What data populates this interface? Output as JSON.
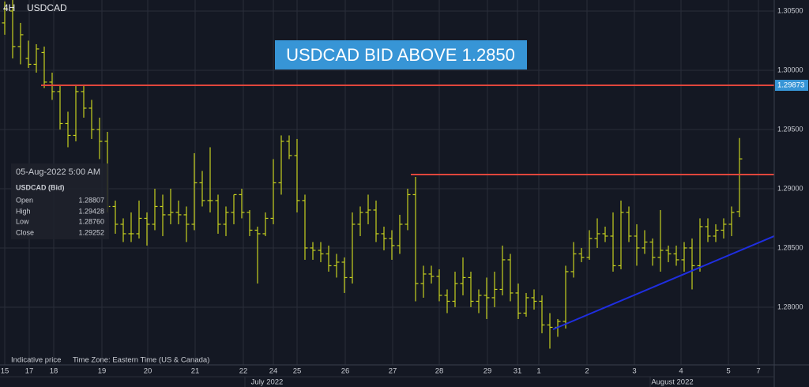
{
  "header": {
    "interval": "4H",
    "symbol": "USDCAD"
  },
  "banner": "USDCAD BID ABOVE 1.2850",
  "info_panel": {
    "datetime": "05-Aug-2022 5:00 AM",
    "instrument": "USDCAD (Bid)",
    "rows": [
      [
        "Open",
        "1.28807"
      ],
      [
        "High",
        "1.29428"
      ],
      [
        "Low",
        "1.28760"
      ],
      [
        "Close",
        "1.29252"
      ]
    ]
  },
  "footer": {
    "note": "Indicative price",
    "timezone": "Time Zone: Eastern Time (US & Canada)"
  },
  "chart_data": {
    "type": "ohlc",
    "color": "#c6d11f",
    "grid": true,
    "xlim": [
      -0.6,
      97.4
    ],
    "ylim": [
      1.27513,
      1.30593
    ],
    "yticks": [
      {
        "value": 1.305,
        "label": "1.30500"
      },
      {
        "value": 1.3,
        "label": "1.30000"
      },
      {
        "value": 1.295,
        "label": "1.29500"
      },
      {
        "value": 1.29,
        "label": "1.29000"
      },
      {
        "value": 1.285,
        "label": "1.28500"
      },
      {
        "value": 1.28,
        "label": "1.28000"
      }
    ],
    "xticks": [
      {
        "value": 0,
        "label": "15"
      },
      {
        "value": 3.1,
        "label": "17"
      },
      {
        "value": 6.2,
        "label": "18"
      },
      {
        "value": 12.3,
        "label": "19"
      },
      {
        "value": 18.1,
        "label": "20"
      },
      {
        "value": 24.1,
        "label": "21"
      },
      {
        "value": 30.2,
        "label": "22"
      },
      {
        "value": 34,
        "label": "24"
      },
      {
        "value": 37,
        "label": "25"
      },
      {
        "value": 43.1,
        "label": "26"
      },
      {
        "value": 49.1,
        "label": "27"
      },
      {
        "value": 55,
        "label": "28"
      },
      {
        "value": 61.1,
        "label": "29"
      },
      {
        "value": 64.9,
        "label": "31"
      },
      {
        "value": 67.6,
        "label": "1"
      },
      {
        "value": 73.7,
        "label": "2"
      },
      {
        "value": 79.7,
        "label": "3"
      },
      {
        "value": 85.6,
        "label": "4"
      },
      {
        "value": 91.6,
        "label": "5"
      },
      {
        "value": 95.4,
        "label": "7"
      }
    ],
    "month_labels": [
      {
        "value": 33.2,
        "label": "July 2022"
      },
      {
        "value": 84.5,
        "label": "August 2022"
      }
    ],
    "open": [
      1.304,
      1.305,
      1.302,
      1.301,
      1.3005,
      1.3015,
      1.299,
      1.2982,
      1.2955,
      1.2945,
      1.2982,
      1.2968,
      1.295,
      1.294,
      1.2885,
      1.287,
      1.2862,
      1.2862,
      1.2875,
      1.287,
      1.2885,
      1.2878,
      1.288,
      1.2878,
      1.287,
      1.2905,
      1.289,
      1.289,
      1.287,
      1.288,
      1.2895,
      1.288,
      1.2865,
      1.2862,
      1.2875,
      1.2905,
      1.294,
      1.2928,
      1.289,
      1.285,
      1.2848,
      1.2845,
      1.2835,
      1.2838,
      1.2825,
      1.287,
      1.288,
      1.2882,
      1.2862,
      1.2858,
      1.2852,
      1.287,
      1.2895,
      1.282,
      1.2828,
      1.2826,
      1.281,
      1.2805,
      1.282,
      1.2825,
      1.2805,
      1.281,
      1.2808,
      1.2815,
      1.284,
      1.2812,
      1.2795,
      1.2808,
      1.2805,
      1.2785,
      1.2783,
      1.2788,
      1.283,
      1.2845,
      1.2842,
      1.2858,
      1.2862,
      1.286,
      1.2835,
      1.288,
      1.286,
      1.285,
      1.2855,
      1.2842,
      1.2848,
      1.2845,
      1.284,
      1.285,
      1.2835,
      1.2868,
      1.286,
      1.2865,
      1.287,
      1.28807
    ],
    "high": [
      1.3058,
      1.3062,
      1.304,
      1.3025,
      1.3022,
      1.302,
      1.2998,
      1.2988,
      1.2965,
      1.2988,
      1.2988,
      1.2975,
      1.296,
      1.2948,
      1.289,
      1.2875,
      1.288,
      1.289,
      1.288,
      1.29,
      1.2895,
      1.29,
      1.289,
      1.2885,
      1.293,
      1.2915,
      1.2935,
      1.2895,
      1.2885,
      1.2895,
      1.29,
      1.2882,
      1.2868,
      1.288,
      1.2925,
      1.2945,
      1.2945,
      1.2942,
      1.2895,
      1.2855,
      1.2855,
      1.2852,
      1.2845,
      1.2842,
      1.288,
      1.2885,
      1.2895,
      1.289,
      1.2868,
      1.2865,
      1.2878,
      1.29,
      1.291,
      1.2835,
      1.2835,
      1.2832,
      1.2815,
      1.283,
      1.2842,
      1.283,
      1.2815,
      1.2825,
      1.283,
      1.2852,
      1.2845,
      1.282,
      1.2812,
      1.2815,
      1.281,
      1.2795,
      1.279,
      1.2835,
      1.2855,
      1.285,
      1.2865,
      1.2875,
      1.2868,
      1.288,
      1.289,
      1.2885,
      1.287,
      1.2865,
      1.2858,
      1.2882,
      1.2852,
      1.2852,
      1.2855,
      1.2858,
      1.2875,
      1.2875,
      1.287,
      1.2875,
      1.2885,
      1.29428
    ],
    "low": [
      1.303,
      1.301,
      1.3005,
      1.3002,
      1.2998,
      1.2985,
      1.2975,
      1.295,
      1.2935,
      1.294,
      1.296,
      1.2942,
      1.2925,
      1.288,
      1.2862,
      1.2855,
      1.2855,
      1.2858,
      1.2852,
      1.2865,
      1.286,
      1.287,
      1.287,
      1.2855,
      1.2865,
      1.2885,
      1.288,
      1.2862,
      1.286,
      1.287,
      1.2875,
      1.286,
      1.282,
      1.286,
      1.287,
      1.2895,
      1.2925,
      1.288,
      1.284,
      1.284,
      1.2838,
      1.283,
      1.2825,
      1.2812,
      1.282,
      1.286,
      1.287,
      1.2855,
      1.2848,
      1.284,
      1.2845,
      1.2865,
      1.2805,
      1.2808,
      1.282,
      1.2805,
      1.2795,
      1.28,
      1.281,
      1.28,
      1.2795,
      1.279,
      1.28,
      1.281,
      1.2805,
      1.279,
      1.2792,
      1.2798,
      1.2778,
      1.2765,
      1.2775,
      1.2782,
      1.2825,
      1.2838,
      1.284,
      1.285,
      1.2855,
      1.283,
      1.2832,
      1.2855,
      1.2835,
      1.2845,
      1.2835,
      1.283,
      1.2838,
      1.2835,
      1.283,
      1.2815,
      1.283,
      1.2855,
      1.2855,
      1.2858,
      1.286,
      1.2876
    ],
    "close": [
      1.3052,
      1.302,
      1.303,
      1.3005,
      1.3018,
      1.299,
      1.2982,
      1.2955,
      1.2945,
      1.2982,
      1.2968,
      1.295,
      1.294,
      1.2885,
      1.287,
      1.2862,
      1.2862,
      1.2875,
      1.287,
      1.2885,
      1.2878,
      1.288,
      1.2878,
      1.287,
      1.2905,
      1.289,
      1.289,
      1.287,
      1.288,
      1.2895,
      1.288,
      1.2865,
      1.2862,
      1.2875,
      1.2905,
      1.294,
      1.2928,
      1.289,
      1.285,
      1.2848,
      1.2845,
      1.2835,
      1.2838,
      1.2825,
      1.287,
      1.288,
      1.2882,
      1.2862,
      1.2858,
      1.2852,
      1.287,
      1.2895,
      1.282,
      1.2828,
      1.2826,
      1.281,
      1.2805,
      1.282,
      1.2825,
      1.2805,
      1.281,
      1.2808,
      1.2815,
      1.284,
      1.2812,
      1.2795,
      1.2808,
      1.2805,
      1.2785,
      1.2783,
      1.2788,
      1.283,
      1.2845,
      1.2842,
      1.2858,
      1.2862,
      1.286,
      1.2835,
      1.288,
      1.286,
      1.285,
      1.2855,
      1.2842,
      1.2848,
      1.2845,
      1.284,
      1.285,
      1.2835,
      1.2868,
      1.286,
      1.2865,
      1.287,
      1.288,
      1.29252
    ],
    "lines": [
      {
        "x": [
          4.6,
          97.4
        ],
        "y": [
          1.29873,
          1.29873
        ],
        "color": "#e0463c",
        "price_tag": 1.29873
      },
      {
        "x": [
          51.4,
          97.4
        ],
        "y": [
          1.2912,
          1.2912
        ],
        "color": "#e0463c"
      },
      {
        "x": [
          69.4,
          97.4
        ],
        "y": [
          1.27813,
          1.286
        ],
        "color": "#1f2ee0"
      }
    ]
  }
}
